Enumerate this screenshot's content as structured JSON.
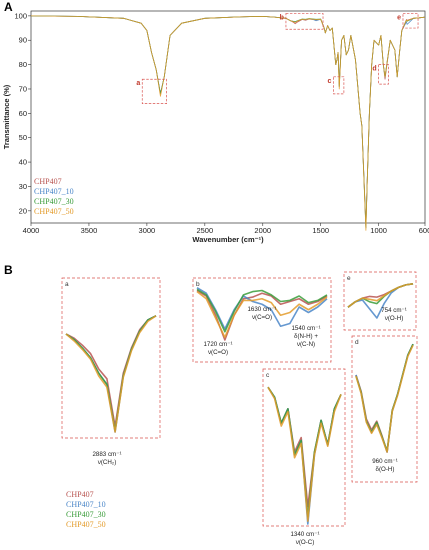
{
  "figure": {
    "panel_a_label": "A",
    "panel_b_label": "B"
  },
  "colors": {
    "CHP407": "#b85450",
    "CHP407_10": "#4a86c8",
    "CHP407_30": "#3a9c3a",
    "CHP407_50": "#e39b2a",
    "region_box": "#d9534f"
  },
  "chart_data": [
    {
      "type": "line",
      "title": "",
      "xlabel": "Wavenumber (cm⁻¹)",
      "ylabel": "Transmittance (%)",
      "xlim": [
        4000,
        600
      ],
      "ylim": [
        15,
        102
      ],
      "x_ticks": [
        "4000",
        "3500",
        "3000",
        "2500",
        "2000",
        "1500",
        "1000",
        "600"
      ],
      "y_ticks": [
        "100",
        "90",
        "80",
        "70",
        "60",
        "50",
        "40",
        "30",
        "20"
      ],
      "legend": [
        "CHP407",
        "CHP407_10",
        "CHP407_30",
        "CHP407_50"
      ],
      "legend_position": "bottom-left",
      "series_x": [
        4000,
        3600,
        3200,
        3050,
        3000,
        2960,
        2920,
        2883,
        2850,
        2800,
        2700,
        2500,
        2200,
        2000,
        1900,
        1800,
        1760,
        1740,
        1720,
        1700,
        1660,
        1630,
        1600,
        1560,
        1540,
        1500,
        1470,
        1460,
        1440,
        1420,
        1400,
        1370,
        1360,
        1350,
        1340,
        1320,
        1300,
        1280,
        1260,
        1240,
        1200,
        1160,
        1145,
        1110,
        1100,
        1080,
        1060,
        1040,
        1000,
        980,
        960,
        945,
        900,
        860,
        840,
        820,
        800,
        760,
        754,
        700,
        650,
        600
      ],
      "series": [
        {
          "name": "CHP407",
          "values": [
            100,
            99.8,
            99,
            97,
            94,
            85,
            78,
            68,
            75,
            92,
            97,
            99,
            99.6,
            99.8,
            99.5,
            99,
            98,
            97.5,
            96.8,
            97.5,
            98.5,
            98.2,
            98.7,
            98.5,
            98.3,
            98.6,
            95,
            93,
            96,
            94,
            95,
            80,
            82,
            85,
            72,
            90,
            92,
            84,
            86,
            92,
            82,
            60,
            55,
            14,
            30,
            60,
            80,
            90,
            88,
            92,
            80,
            74,
            90,
            86,
            75,
            85,
            94,
            98.5,
            98.2,
            99,
            99.2,
            99.5
          ]
        },
        {
          "name": "CHP407_10",
          "values": [
            100,
            99.8,
            99,
            97,
            94,
            85,
            78,
            68,
            75,
            92,
            97,
            99,
            99.6,
            99.8,
            99.5,
            99,
            98,
            97.8,
            97.6,
            98,
            98.6,
            98.4,
            98.8,
            98.4,
            98.0,
            98.6,
            95,
            93,
            96,
            94,
            95,
            80,
            82,
            85,
            71,
            90,
            92,
            84,
            86,
            92,
            82,
            60,
            55,
            13,
            30,
            60,
            80,
            90,
            88,
            92,
            80,
            75,
            90,
            86,
            75,
            85,
            94,
            97.5,
            96.5,
            99,
            99.2,
            99.5
          ]
        },
        {
          "name": "CHP407_30",
          "values": [
            100,
            99.8,
            99,
            97,
            94,
            85,
            78,
            68,
            75,
            92,
            97,
            99,
            99.6,
            99.8,
            99.5,
            99,
            98,
            97.8,
            97.6,
            98,
            98.7,
            98.6,
            98.9,
            98.7,
            98.6,
            98.7,
            95,
            93,
            96,
            94,
            95,
            80,
            82,
            85,
            71,
            90,
            92,
            84,
            86,
            92,
            82,
            60,
            55,
            13,
            30,
            60,
            80,
            90,
            88,
            92,
            80,
            75,
            90,
            86,
            75,
            85,
            94,
            98.2,
            97.8,
            99,
            99.2,
            99.5
          ]
        },
        {
          "name": "CHP407_50",
          "values": [
            100,
            99.8,
            99,
            97,
            94,
            85,
            78,
            67,
            75,
            92,
            97,
            99,
            99.6,
            99.8,
            99.5,
            99,
            98,
            97.7,
            97.3,
            97.9,
            98.6,
            98.5,
            98.8,
            98.6,
            98.4,
            98.6,
            95,
            93,
            96,
            94,
            95,
            80,
            82,
            85,
            70,
            90,
            92,
            84,
            86,
            92,
            82,
            60,
            55,
            12,
            30,
            60,
            80,
            90,
            88,
            92,
            80,
            75,
            90,
            86,
            75,
            85,
            94,
            98.3,
            98.0,
            99,
            99.2,
            99.5
          ]
        }
      ],
      "regions": [
        {
          "label": "a",
          "x_range": [
            3040,
            2830
          ],
          "y_range": [
            64,
            74
          ]
        },
        {
          "label": "b",
          "x_range": [
            1800,
            1480
          ],
          "y_range": [
            94.5,
            101
          ]
        },
        {
          "label": "c",
          "x_range": [
            1390,
            1300
          ],
          "y_range": [
            68,
            75
          ]
        },
        {
          "label": "d",
          "x_range": [
            1000,
            915
          ],
          "y_range": [
            72,
            80
          ]
        },
        {
          "label": "e",
          "x_range": [
            790,
            660
          ],
          "y_range": [
            95,
            101
          ]
        }
      ]
    },
    {
      "type": "line",
      "panel": "a",
      "series": [
        {
          "name": "CHP407",
          "values": [
            0.3,
            0.33,
            0.38,
            0.44,
            0.55,
            0.62,
            0.96,
            0.58,
            0.4,
            0.27,
            0.2,
            0.17
          ]
        },
        {
          "name": "CHP407_10",
          "values": [
            0.3,
            0.34,
            0.4,
            0.47,
            0.58,
            0.66,
            1.0,
            0.6,
            0.41,
            0.28,
            0.2,
            0.17
          ]
        },
        {
          "name": "CHP407_30",
          "values": [
            0.3,
            0.34,
            0.4,
            0.47,
            0.58,
            0.66,
            0.99,
            0.6,
            0.41,
            0.28,
            0.2,
            0.17
          ]
        },
        {
          "name": "CHP407_50",
          "values": [
            0.3,
            0.35,
            0.41,
            0.48,
            0.6,
            0.68,
            1.0,
            0.61,
            0.42,
            0.29,
            0.21,
            0.17
          ]
        }
      ],
      "annotations": [
        {
          "text": "2883 cm⁻¹",
          "sub": "ν(CH₂)"
        }
      ]
    },
    {
      "type": "line",
      "panel": "b",
      "series": [
        {
          "name": "CHP407",
          "values": [
            0.1,
            0.2,
            0.55,
            1.0,
            0.55,
            0.25,
            0.22,
            0.15,
            0.2,
            0.35,
            0.3,
            0.25,
            0.35,
            0.3,
            0.2
          ]
        },
        {
          "name": "CHP407_10",
          "values": [
            0.05,
            0.15,
            0.45,
            0.8,
            0.45,
            0.2,
            0.3,
            0.35,
            0.45,
            0.75,
            0.7,
            0.4,
            0.5,
            0.4,
            0.25
          ]
        },
        {
          "name": "CHP407_30",
          "values": [
            0.08,
            0.18,
            0.48,
            0.85,
            0.48,
            0.18,
            0.12,
            0.1,
            0.18,
            0.3,
            0.28,
            0.2,
            0.32,
            0.28,
            0.18
          ]
        },
        {
          "name": "CHP407_50",
          "values": [
            0.12,
            0.25,
            0.6,
            0.95,
            0.55,
            0.28,
            0.28,
            0.25,
            0.32,
            0.55,
            0.5,
            0.35,
            0.45,
            0.35,
            0.22
          ]
        }
      ],
      "annotations": [
        {
          "text": "1720 cm⁻¹",
          "sub": "ν(C=O)"
        },
        {
          "text": "1630 cm⁻¹",
          "sub": "ν(C=O)"
        },
        {
          "text": "1540 cm⁻¹",
          "sub": "δ(N-H) +",
          "sub2": "ν(C-N)"
        }
      ]
    },
    {
      "type": "line",
      "panel": "c",
      "series": [
        {
          "name": "CHP407",
          "values": [
            0.05,
            0.12,
            0.3,
            0.2,
            0.5,
            0.4,
            0.88,
            0.5,
            0.28,
            0.45,
            0.2,
            0.1
          ]
        },
        {
          "name": "CHP407_10",
          "values": [
            0.05,
            0.12,
            0.3,
            0.2,
            0.52,
            0.42,
            1.0,
            0.52,
            0.28,
            0.45,
            0.2,
            0.1
          ]
        },
        {
          "name": "CHP407_30",
          "values": [
            0.05,
            0.12,
            0.3,
            0.2,
            0.52,
            0.42,
            0.95,
            0.5,
            0.28,
            0.45,
            0.2,
            0.1
          ]
        },
        {
          "name": "CHP407_50",
          "values": [
            0.05,
            0.13,
            0.32,
            0.22,
            0.54,
            0.44,
            0.98,
            0.52,
            0.3,
            0.46,
            0.22,
            0.1
          ]
        }
      ],
      "annotations": [
        {
          "text": "1340 cm⁻¹",
          "sub": "ν(O-C)"
        }
      ]
    },
    {
      "type": "line",
      "panel": "d",
      "series": [
        {
          "name": "CHP407",
          "values": [
            0.3,
            0.45,
            0.7,
            0.8,
            0.72,
            0.85,
            1.0,
            0.62,
            0.48,
            0.3,
            0.12,
            0.02
          ]
        },
        {
          "name": "CHP407_10",
          "values": [
            0.3,
            0.46,
            0.72,
            0.82,
            0.74,
            0.86,
            1.0,
            0.63,
            0.48,
            0.3,
            0.12,
            0.02
          ]
        },
        {
          "name": "CHP407_30",
          "values": [
            0.31,
            0.46,
            0.72,
            0.82,
            0.73,
            0.86,
            0.99,
            0.62,
            0.48,
            0.3,
            0.12,
            0.02
          ]
        },
        {
          "name": "CHP407_50",
          "values": [
            0.31,
            0.47,
            0.73,
            0.83,
            0.75,
            0.87,
            1.0,
            0.63,
            0.49,
            0.31,
            0.13,
            0.03
          ]
        }
      ],
      "annotations": [
        {
          "text": "960 cm⁻¹",
          "sub": "δ(O-H)"
        }
      ]
    },
    {
      "type": "line",
      "panel": "e",
      "series": [
        {
          "name": "CHP407",
          "values": [
            0.7,
            0.55,
            0.45,
            0.4,
            0.42,
            0.35,
            0.25,
            0.15,
            0.08,
            0.05
          ]
        },
        {
          "name": "CHP407_10",
          "values": [
            0.7,
            0.55,
            0.5,
            0.75,
            1.0,
            0.6,
            0.3,
            0.15,
            0.08,
            0.05
          ]
        },
        {
          "name": "CHP407_30",
          "values": [
            0.7,
            0.55,
            0.45,
            0.55,
            0.6,
            0.4,
            0.25,
            0.15,
            0.08,
            0.05
          ]
        },
        {
          "name": "CHP407_50",
          "values": [
            0.7,
            0.55,
            0.45,
            0.48,
            0.52,
            0.38,
            0.25,
            0.15,
            0.08,
            0.05
          ]
        }
      ],
      "annotations": [
        {
          "text": "754 cm⁻¹",
          "sub": "ν(O-H)"
        }
      ]
    }
  ]
}
